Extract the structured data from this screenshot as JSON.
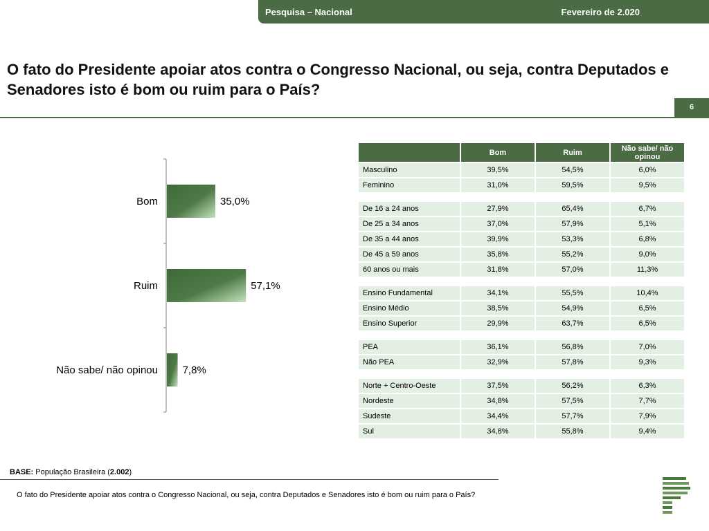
{
  "header": {
    "left": "Pesquisa – Nacional",
    "right": "Fevereiro de 2.020"
  },
  "title": "O fato do Presidente apoiar atos contra o Congresso Nacional, ou seja, contra Deputados e Senadores isto é bom ou ruim para o País?",
  "page_number": "6",
  "colors": {
    "brand_green": "#4b6b45",
    "bar_dark": "#3f6a38",
    "bar_light": "#b9dcb0",
    "cell_bg": "#e3efe3"
  },
  "chart_data": {
    "type": "bar",
    "orientation": "horizontal",
    "categories": [
      "Bom",
      "Ruim",
      "Não sabe/ não opinou"
    ],
    "values": [
      35.0,
      57.1,
      7.8
    ],
    "value_labels": [
      "35,0%",
      "57,1%",
      "7,8%"
    ],
    "title": "",
    "xlabel": "",
    "ylabel": "",
    "xlim": [
      0,
      100
    ]
  },
  "table": {
    "columns": [
      "Bom",
      "Ruim",
      "Não sabe/ não opinou"
    ],
    "groups": [
      [
        {
          "label": "Masculino",
          "values": [
            "39,5%",
            "54,5%",
            "6,0%"
          ]
        },
        {
          "label": "Feminino",
          "values": [
            "31,0%",
            "59,5%",
            "9,5%"
          ]
        }
      ],
      [
        {
          "label": "De 16 a 24 anos",
          "values": [
            "27,9%",
            "65,4%",
            "6,7%"
          ]
        },
        {
          "label": "De 25 a 34 anos",
          "values": [
            "37,0%",
            "57,9%",
            "5,1%"
          ]
        },
        {
          "label": "De 35 a 44 anos",
          "values": [
            "39,9%",
            "53,3%",
            "6,8%"
          ]
        },
        {
          "label": "De 45 a 59 anos",
          "values": [
            "35,8%",
            "55,2%",
            "9,0%"
          ]
        },
        {
          "label": "60 anos ou mais",
          "values": [
            "31,8%",
            "57,0%",
            "11,3%"
          ]
        }
      ],
      [
        {
          "label": "Ensino Fundamental",
          "values": [
            "34,1%",
            "55,5%",
            "10,4%"
          ]
        },
        {
          "label": "Ensino Médio",
          "values": [
            "38,5%",
            "54,9%",
            "6,5%"
          ]
        },
        {
          "label": "Ensino Superior",
          "values": [
            "29,9%",
            "63,7%",
            "6,5%"
          ]
        }
      ],
      [
        {
          "label": "PEA",
          "values": [
            "36,1%",
            "56,8%",
            "7,0%"
          ]
        },
        {
          "label": "Não PEA",
          "values": [
            "32,9%",
            "57,8%",
            "9,3%"
          ]
        }
      ],
      [
        {
          "label": "Norte + Centro-Oeste",
          "values": [
            "37,5%",
            "56,2%",
            "6,3%"
          ]
        },
        {
          "label": "Nordeste",
          "values": [
            "34,8%",
            "57,5%",
            "7,7%"
          ]
        },
        {
          "label": "Sudeste",
          "values": [
            "34,4%",
            "57,7%",
            "7,9%"
          ]
        },
        {
          "label": "Sul",
          "values": [
            "34,8%",
            "55,8%",
            "9,4%"
          ]
        }
      ]
    ]
  },
  "footer": {
    "base_label": "BASE:",
    "base_text_1": " População Brasileira (",
    "base_n": "2.002",
    "base_text_2": ")",
    "question": "O fato do Presidente apoiar atos contra o Congresso Nacional, ou seja, contra Deputados e Senadores isto é bom ou ruim para o País?"
  },
  "logo": {
    "icon": "company-logo-icon"
  }
}
